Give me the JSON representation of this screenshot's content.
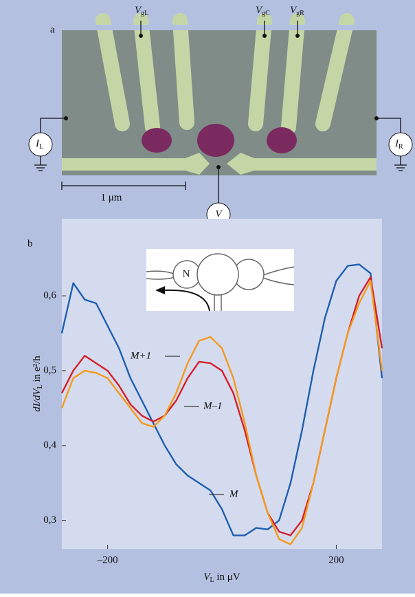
{
  "panel_a": {
    "label": "a",
    "gates": [
      {
        "symbol": "V",
        "subscript": "gL"
      },
      {
        "symbol": "V",
        "subscript": "gC"
      },
      {
        "symbol": "V",
        "subscript": "gR"
      }
    ],
    "left_meter": {
      "symbol": "I",
      "subscript": "L"
    },
    "right_meter": {
      "symbol": "I",
      "subscript": "R"
    },
    "voltmeter": "V",
    "scale_bar": "1 μm"
  },
  "chart_data": {
    "type": "line",
    "panel_label": "b",
    "x_label": {
      "symbol": "V",
      "subscript": "L",
      "rest": " in μV"
    },
    "y_label": {
      "symbol": "dI/dV",
      "subscript": "L",
      "rest": " in e²/h"
    },
    "inset_label": "N",
    "x": [
      -280,
      -260,
      -240,
      -220,
      -200,
      -180,
      -160,
      -140,
      -120,
      -100,
      -80,
      -60,
      -40,
      -20,
      0,
      20,
      40,
      60,
      80,
      100,
      120,
      140,
      160,
      180,
      200,
      220,
      240,
      260,
      280
    ],
    "series": [
      {
        "name": "M",
        "color": "#1f5fb0",
        "values": [
          0.55,
          0.617,
          0.595,
          0.59,
          0.56,
          0.53,
          0.49,
          0.46,
          0.43,
          0.4,
          0.375,
          0.36,
          0.35,
          0.34,
          0.315,
          0.28,
          0.28,
          0.29,
          0.288,
          0.3,
          0.35,
          0.42,
          0.5,
          0.57,
          0.62,
          0.64,
          0.642,
          0.63,
          0.49
        ]
      },
      {
        "name": "M–1",
        "color": "#d4202a",
        "values": [
          0.47,
          0.5,
          0.52,
          0.51,
          0.5,
          0.48,
          0.455,
          0.44,
          0.432,
          0.44,
          0.46,
          0.49,
          0.512,
          0.51,
          0.5,
          0.47,
          0.42,
          0.36,
          0.31,
          0.285,
          0.28,
          0.3,
          0.35,
          0.42,
          0.49,
          0.55,
          0.6,
          0.625,
          0.53
        ]
      },
      {
        "name": "M+1",
        "color": "#f39a1c",
        "values": [
          0.45,
          0.49,
          0.5,
          0.497,
          0.49,
          0.47,
          0.45,
          0.43,
          0.425,
          0.44,
          0.47,
          0.51,
          0.54,
          0.545,
          0.53,
          0.49,
          0.43,
          0.36,
          0.31,
          0.275,
          0.268,
          0.29,
          0.35,
          0.42,
          0.49,
          0.55,
          0.59,
          0.62,
          0.5
        ]
      }
    ],
    "xlim": [
      -280,
      280
    ],
    "ylim": [
      0.262,
      0.703
    ],
    "xticks": [
      {
        "value": -200,
        "label": "–200"
      },
      200
    ],
    "yticks": [
      {
        "value": 0.3,
        "label": "0,3"
      },
      {
        "value": 0.4,
        "label": "0,4"
      },
      {
        "value": 0.5,
        "label": "0,5"
      },
      {
        "value": 0.6,
        "label": "0,6"
      }
    ]
  }
}
